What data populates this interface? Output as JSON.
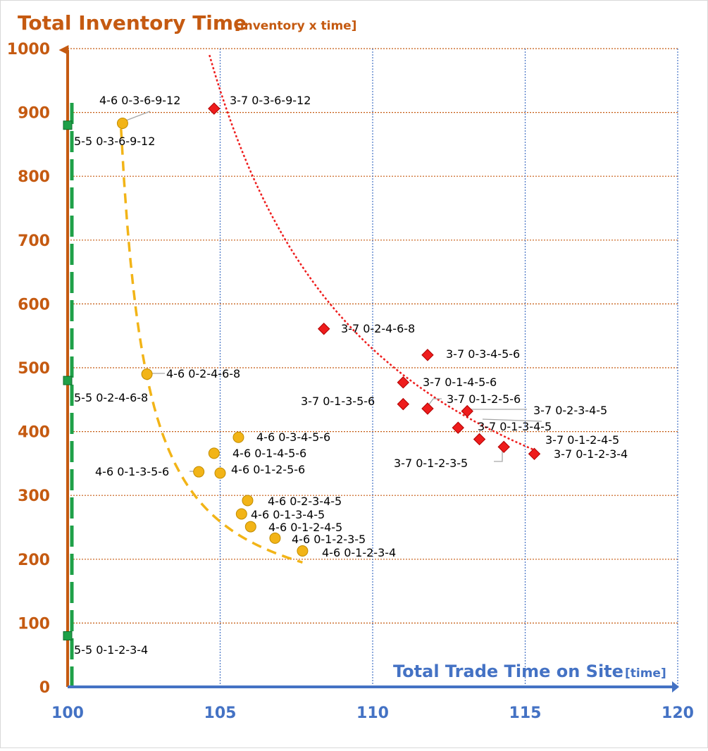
{
  "chart_data": {
    "type": "scatter",
    "title": "Total Inventory Time",
    "title_unit": "[inventory x time]",
    "xlabel": "Total Trade Time on Site",
    "xlabel_unit": "[time]",
    "xlim": [
      100,
      120
    ],
    "ylim": [
      0,
      1000
    ],
    "xticks": [
      100,
      105,
      110,
      115,
      120
    ],
    "yticks": [
      0,
      100,
      200,
      300,
      400,
      500,
      600,
      700,
      800,
      900,
      1000
    ],
    "grid": true,
    "colors": {
      "y_axis": "#c55a11",
      "x_axis": "#4472c4",
      "grid_h": "#c55a11",
      "grid_v": "#4472c4",
      "series_5_5": "#1fa048",
      "series_4_6": "#f2b417",
      "series_3_7": "#ee1c1c"
    },
    "series": [
      {
        "key": "5-5",
        "marker": "square",
        "points": [
          {
            "label": "5-5  0-3-6-9-12",
            "x": 100,
            "y": 880
          },
          {
            "label": "5-5  0-2-4-6-8",
            "x": 100,
            "y": 480
          },
          {
            "label": "5-5  0-1-2-3-4",
            "x": 100,
            "y": 80
          }
        ]
      },
      {
        "key": "4-6",
        "marker": "circle",
        "points": [
          {
            "label": "4-6 0-3-6-9-12",
            "x": 101.8,
            "y": 883
          },
          {
            "label": "4-6 0-2-4-6-8",
            "x": 102.6,
            "y": 490
          },
          {
            "label": "4-6 0-3-4-5-6",
            "x": 105.6,
            "y": 391
          },
          {
            "label": "4-6 0-1-4-5-6",
            "x": 104.8,
            "y": 366
          },
          {
            "label": "4-6 0-1-3-5-6",
            "x": 104.3,
            "y": 337
          },
          {
            "label": "4-6 0-1-2-5-6",
            "x": 105.0,
            "y": 335
          },
          {
            "label": "4-6 0-2-3-4-5",
            "x": 105.9,
            "y": 292
          },
          {
            "label": "4-6 0-1-3-4-5",
            "x": 105.7,
            "y": 271
          },
          {
            "label": "4-6 0-1-2-4-5",
            "x": 106.0,
            "y": 251
          },
          {
            "label": "4-6 0-1-2-3-5",
            "x": 106.8,
            "y": 233
          },
          {
            "label": "4-6 0-1-2-3-4",
            "x": 107.7,
            "y": 213
          }
        ]
      },
      {
        "key": "3-7",
        "marker": "diamond",
        "points": [
          {
            "label": "3-7  0-3-6-9-12",
            "x": 104.8,
            "y": 906
          },
          {
            "label": "3-7  0-2-4-6-8",
            "x": 108.4,
            "y": 561
          },
          {
            "label": "3-7  0-3-4-5-6",
            "x": 111.8,
            "y": 520
          },
          {
            "label": "3-7  0-1-4-5-6",
            "x": 111.0,
            "y": 477
          },
          {
            "label": "3-7  0-1-3-5-6",
            "x": 111.0,
            "y": 443
          },
          {
            "label": "3-7  0-1-2-5-6",
            "x": 111.8,
            "y": 436
          },
          {
            "label": "3-7  0-2-3-4-5",
            "x": 113.1,
            "y": 432
          },
          {
            "label": "3-7  0-1-3-4-5",
            "x": 112.8,
            "y": 406
          },
          {
            "label": "3-7  0-1-2-4-5",
            "x": 113.5,
            "y": 388
          },
          {
            "label": "3-7  0-1-2-3-5",
            "x": 114.3,
            "y": 376
          },
          {
            "label": "3-7  0-1-2-3-4",
            "x": 115.3,
            "y": 365
          }
        ]
      }
    ]
  }
}
